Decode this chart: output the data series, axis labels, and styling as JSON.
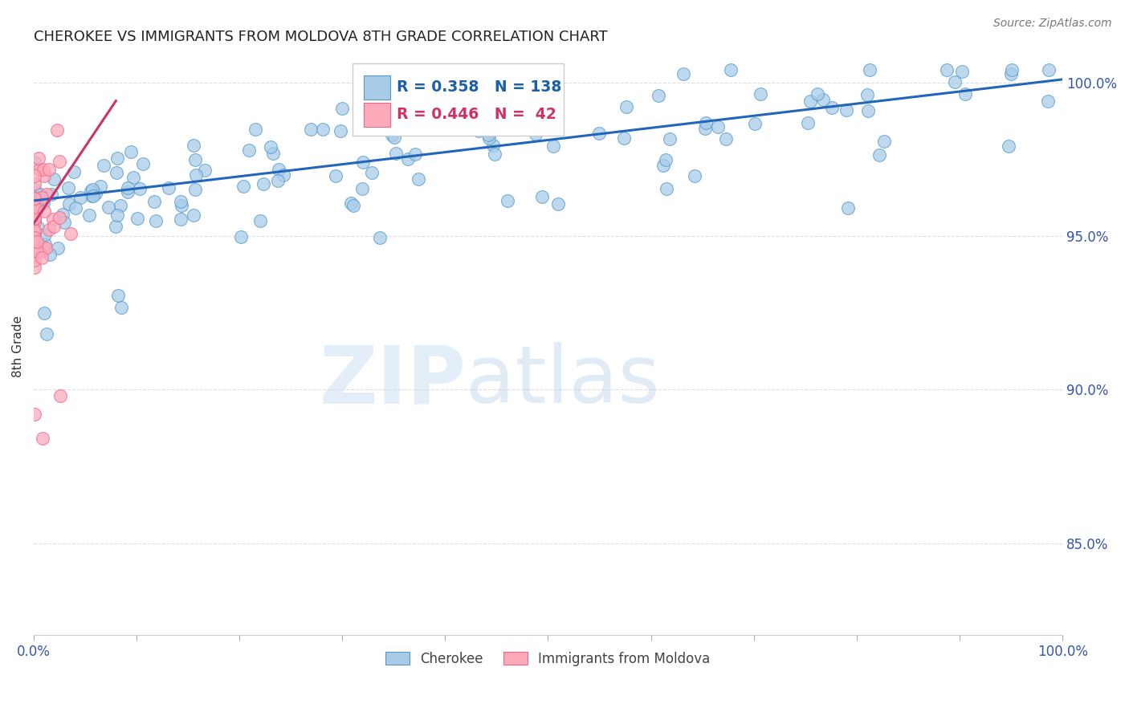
{
  "title": "CHEROKEE VS IMMIGRANTS FROM MOLDOVA 8TH GRADE CORRELATION CHART",
  "source": "Source: ZipAtlas.com",
  "ylabel": "8th Grade",
  "xlim": [
    0.0,
    1.0
  ],
  "ylim": [
    0.82,
    1.008
  ],
  "ytick_labels": [
    "85.0%",
    "90.0%",
    "95.0%",
    "100.0%"
  ],
  "ytick_values": [
    0.85,
    0.9,
    0.95,
    1.0
  ],
  "legend_R_blue": "0.358",
  "legend_N_blue": "138",
  "legend_R_pink": "0.446",
  "legend_N_pink": " 42",
  "blue_marker_color": "#a8cce8",
  "blue_edge_color": "#5599cc",
  "blue_line_color": "#2266bb",
  "pink_marker_color": "#ffaabb",
  "pink_edge_color": "#ee6688",
  "pink_line_color": "#cc3366",
  "legend_blue_color": "#1a5fa8",
  "legend_pink_color": "#cc3366",
  "blue_line_y_start": 0.9615,
  "blue_line_y_end": 1.001,
  "pink_line_y_start": 0.954,
  "pink_line_y_end": 0.994,
  "pink_line_x_end": 0.08,
  "watermark_zip_color": "#cce0f5",
  "watermark_atlas_color": "#b0cce8",
  "background_color": "#ffffff",
  "grid_color": "#dddddd",
  "tick_color": "#aaaaaa",
  "label_color": "#3355aa",
  "source_color": "#777777",
  "ylabel_color": "#333333"
}
